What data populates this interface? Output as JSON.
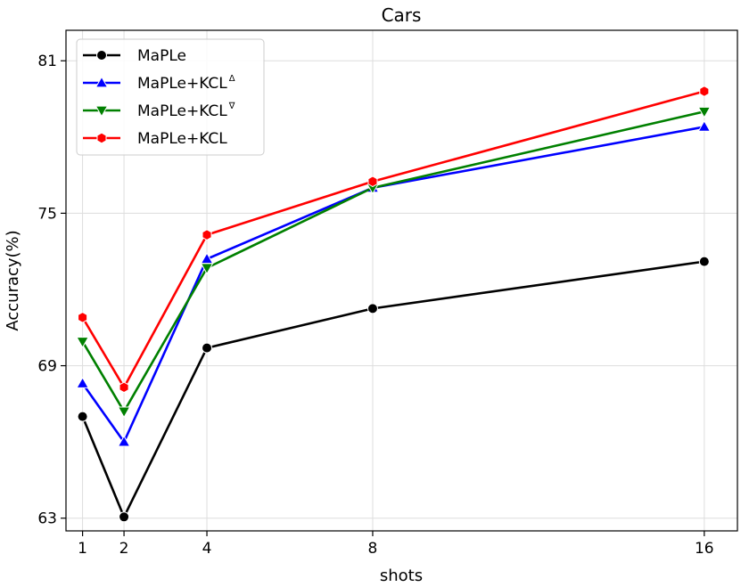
{
  "chart_data": {
    "type": "line",
    "title": "Cars",
    "xlabel": "shots",
    "ylabel": "Accuracy(%)",
    "x": [
      1,
      2,
      4,
      8,
      16
    ],
    "x_tick_labels": [
      "1",
      "2",
      "4",
      "8",
      "16"
    ],
    "y_ticks": [
      63,
      69,
      75,
      81
    ],
    "y_tick_labels": [
      "63",
      "69",
      "75",
      "81"
    ],
    "ylim": [
      62.5,
      82.2
    ],
    "xlim": [
      0.6,
      16.8
    ],
    "grid": true,
    "legend_position": "top-left",
    "series": [
      {
        "name": "MaPLe",
        "suffix": "",
        "color": "#000000",
        "marker": "circle",
        "values": [
          67.0,
          63.05,
          69.7,
          71.25,
          73.1
        ]
      },
      {
        "name": "MaPLe+KCL",
        "suffix": "Δ",
        "color": "#0000ff",
        "marker": "triangle-up",
        "values": [
          68.3,
          66.0,
          73.2,
          76.0,
          78.4
        ]
      },
      {
        "name": "MaPLe+KCL",
        "suffix": "∇",
        "color": "#008000",
        "marker": "triangle-down",
        "values": [
          69.95,
          67.2,
          72.85,
          76.0,
          79.0
        ]
      },
      {
        "name": "MaPLe+KCL",
        "suffix": "",
        "color": "#ff0000",
        "marker": "hexagon",
        "values": [
          70.9,
          68.15,
          74.15,
          76.25,
          79.8
        ]
      }
    ]
  }
}
